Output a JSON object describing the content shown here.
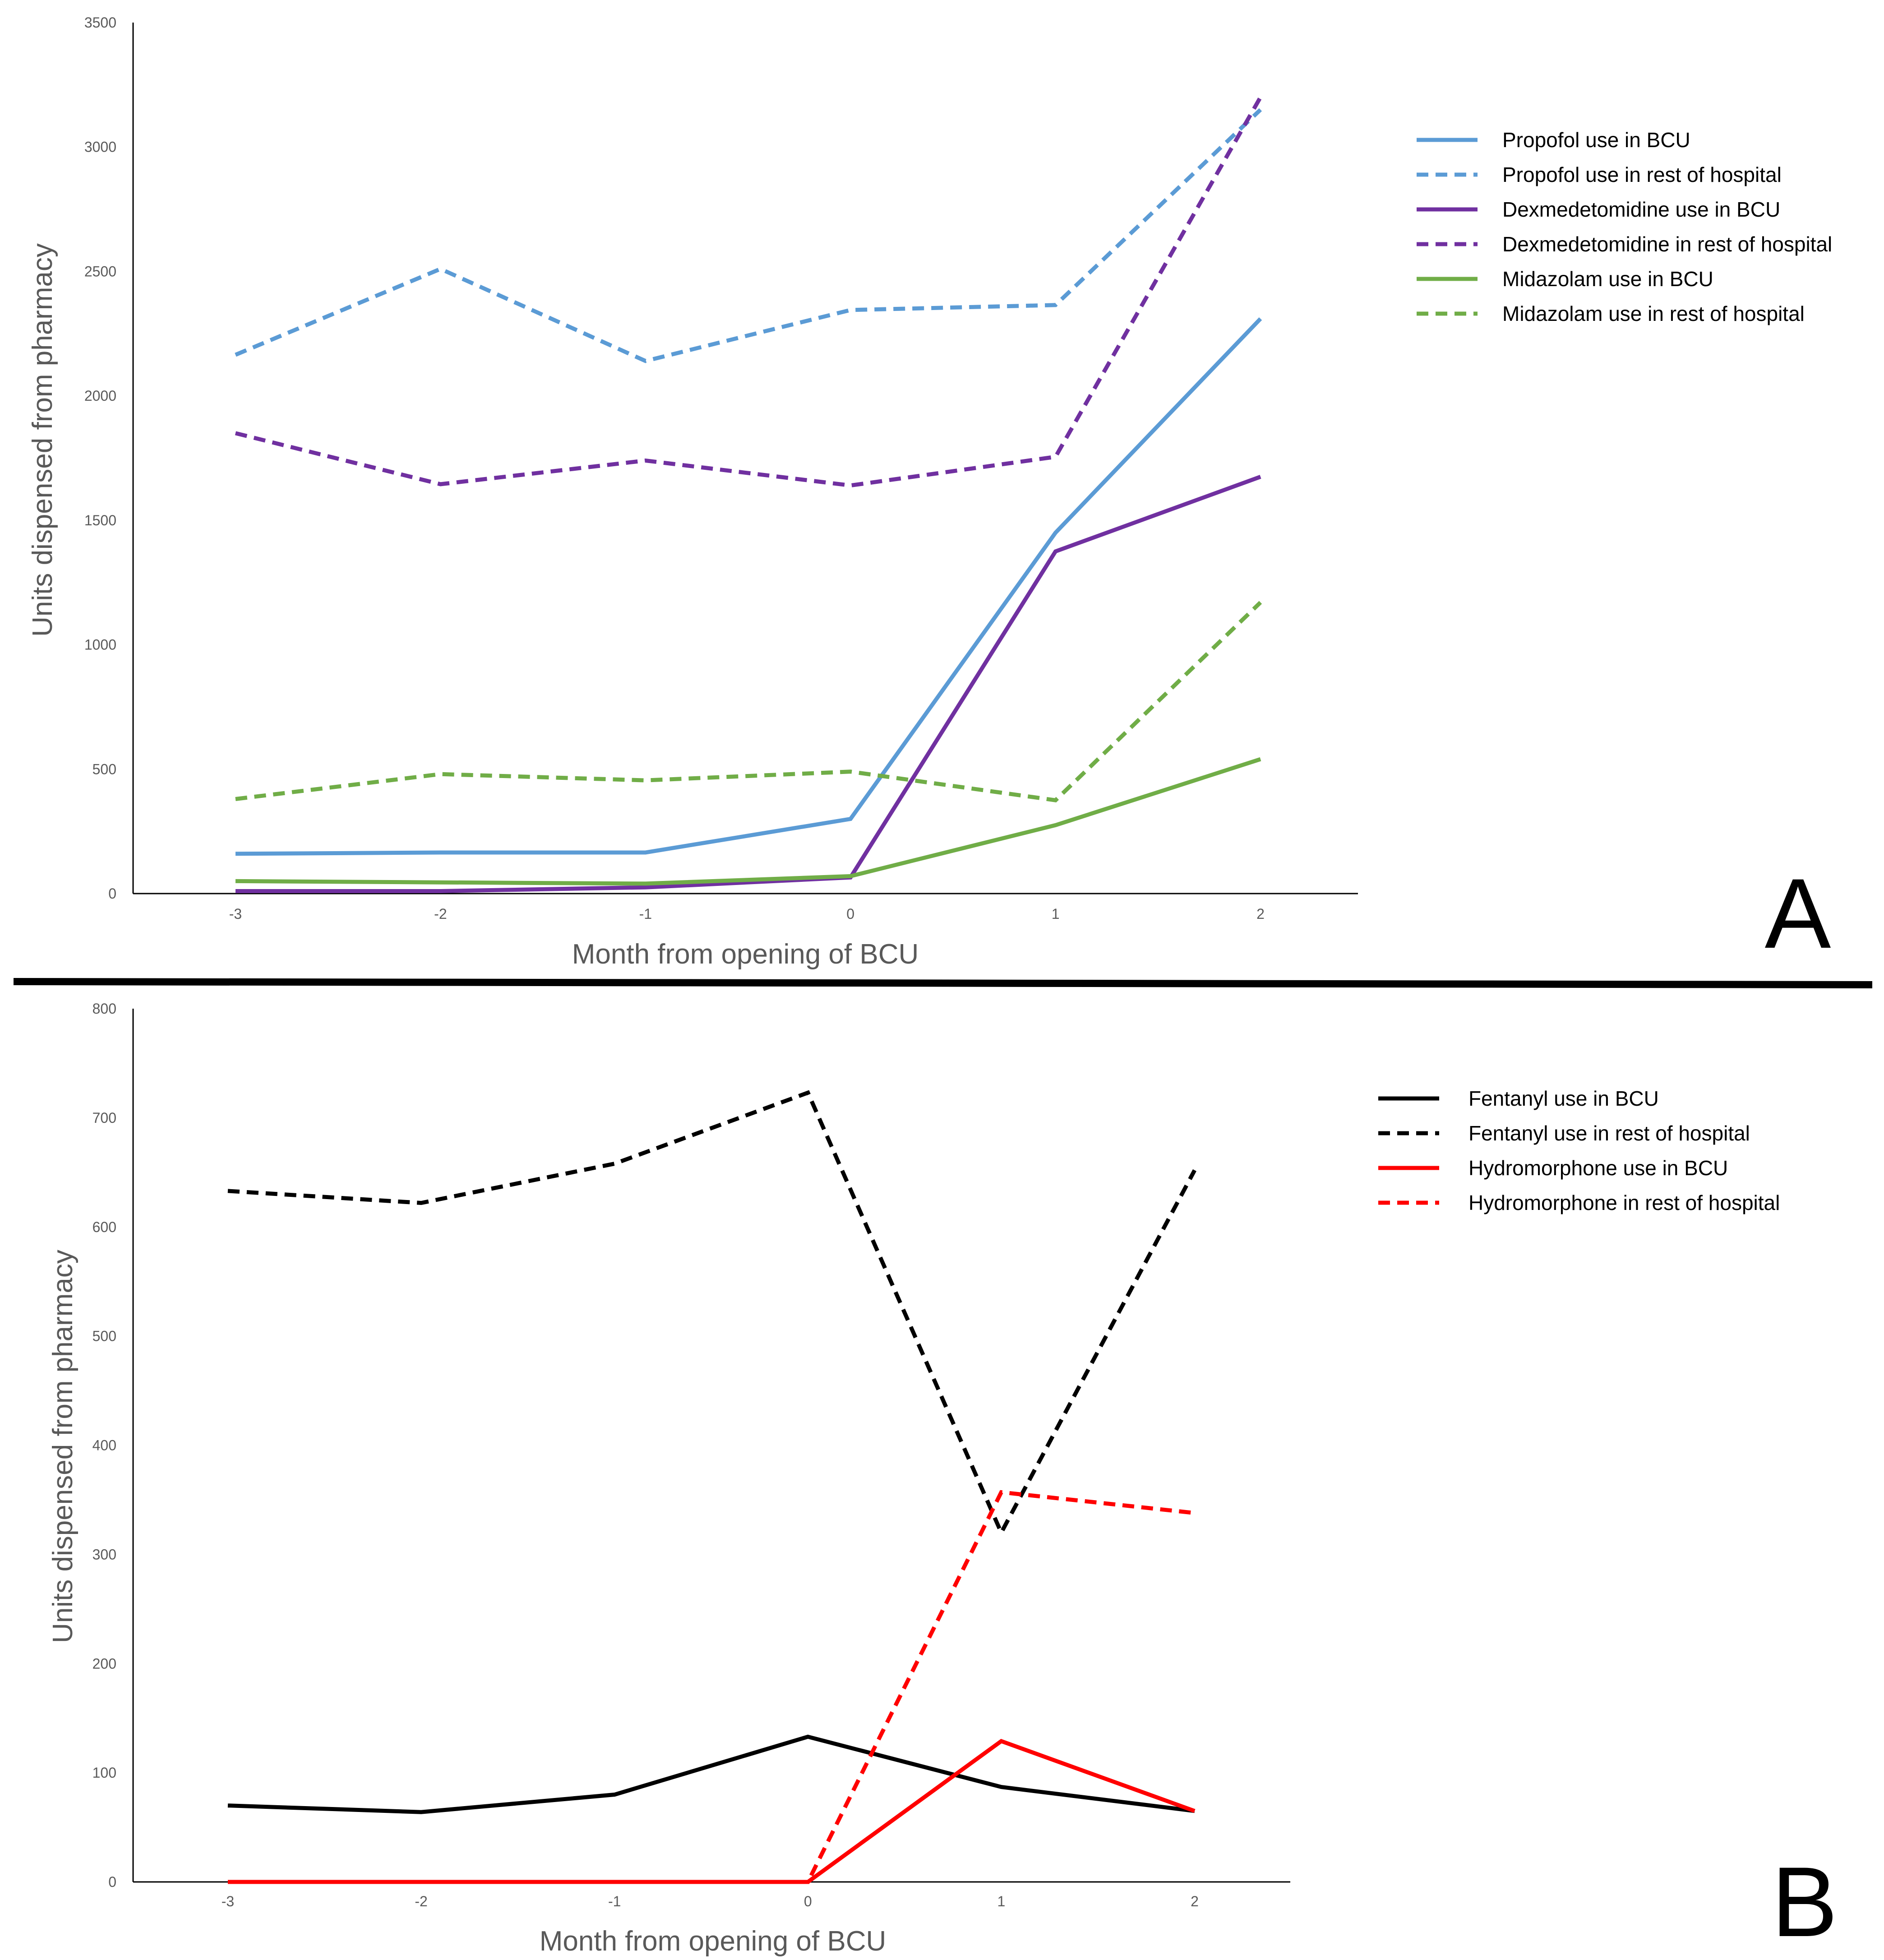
{
  "chart_data": [
    {
      "type": "line",
      "panel_label": "A",
      "xlabel": "Month from opening of BCU",
      "ylabel": "Units dispensed from pharmacy",
      "x": [
        -3,
        -2,
        -1,
        0,
        1,
        2
      ],
      "x_tick_labels": [
        "-3",
        "-2",
        "-1",
        "0",
        "1",
        "2"
      ],
      "y_tick_labels": [
        "0",
        "500",
        "1000",
        "1500",
        "2000",
        "2500",
        "3000",
        "3500"
      ],
      "ylim": [
        0,
        3500
      ],
      "grid": false,
      "legend_position": "top-right",
      "series": [
        {
          "name": "Propofol use in BCU",
          "values": [
            160,
            165,
            165,
            300,
            1450,
            2310
          ],
          "color": "#5B9BD5",
          "style": "solid"
        },
        {
          "name": "Propofol use in rest of hospital",
          "values": [
            2165,
            2510,
            2140,
            2345,
            2365,
            3150
          ],
          "color": "#5B9BD5",
          "style": "dashed"
        },
        {
          "name": "Dexmedetomidine use in BCU",
          "values": [
            10,
            10,
            25,
            65,
            1375,
            1675
          ],
          "color": "#7030A0",
          "style": "solid"
        },
        {
          "name": "Dexmedetomidine in rest of hospital",
          "values": [
            1850,
            1645,
            1740,
            1640,
            1755,
            3200
          ],
          "color": "#7030A0",
          "style": "dashed"
        },
        {
          "name": "Midazolam use in BCU",
          "values": [
            50,
            45,
            40,
            70,
            275,
            540
          ],
          "color": "#70AD47",
          "style": "solid"
        },
        {
          "name": "Midazolam use in rest of hospital",
          "values": [
            380,
            480,
            455,
            490,
            375,
            1170
          ],
          "color": "#70AD47",
          "style": "dashed"
        }
      ]
    },
    {
      "type": "line",
      "panel_label": "B",
      "xlabel": "Month from opening of BCU",
      "ylabel": "Units dispensed from pharmacy",
      "x": [
        -3,
        -2,
        -1,
        0,
        1,
        2
      ],
      "x_tick_labels": [
        "-3",
        "-2",
        "-1",
        "0",
        "1",
        "2"
      ],
      "y_tick_labels": [
        "0",
        "100",
        "200",
        "300",
        "400",
        "500",
        "600",
        "700",
        "800"
      ],
      "ylim": [
        0,
        800
      ],
      "grid": false,
      "legend_position": "top-right",
      "series": [
        {
          "name": "Fentanyl use in BCU",
          "values": [
            70,
            64,
            80,
            133,
            87,
            65
          ],
          "color": "#000000",
          "style": "solid"
        },
        {
          "name": "Fentanyl use in rest of hospital",
          "values": [
            633,
            622,
            658,
            723,
            320,
            652
          ],
          "color": "#000000",
          "style": "dashed"
        },
        {
          "name": "Hydromorphone use in BCU",
          "values": [
            0,
            0,
            0,
            0,
            129,
            65
          ],
          "color": "#FF0000",
          "style": "solid"
        },
        {
          "name": "Hydromorphone in rest of hospital",
          "values": [
            0,
            0,
            0,
            0,
            357,
            338
          ],
          "color": "#FF0000",
          "style": "dashed"
        }
      ]
    }
  ]
}
